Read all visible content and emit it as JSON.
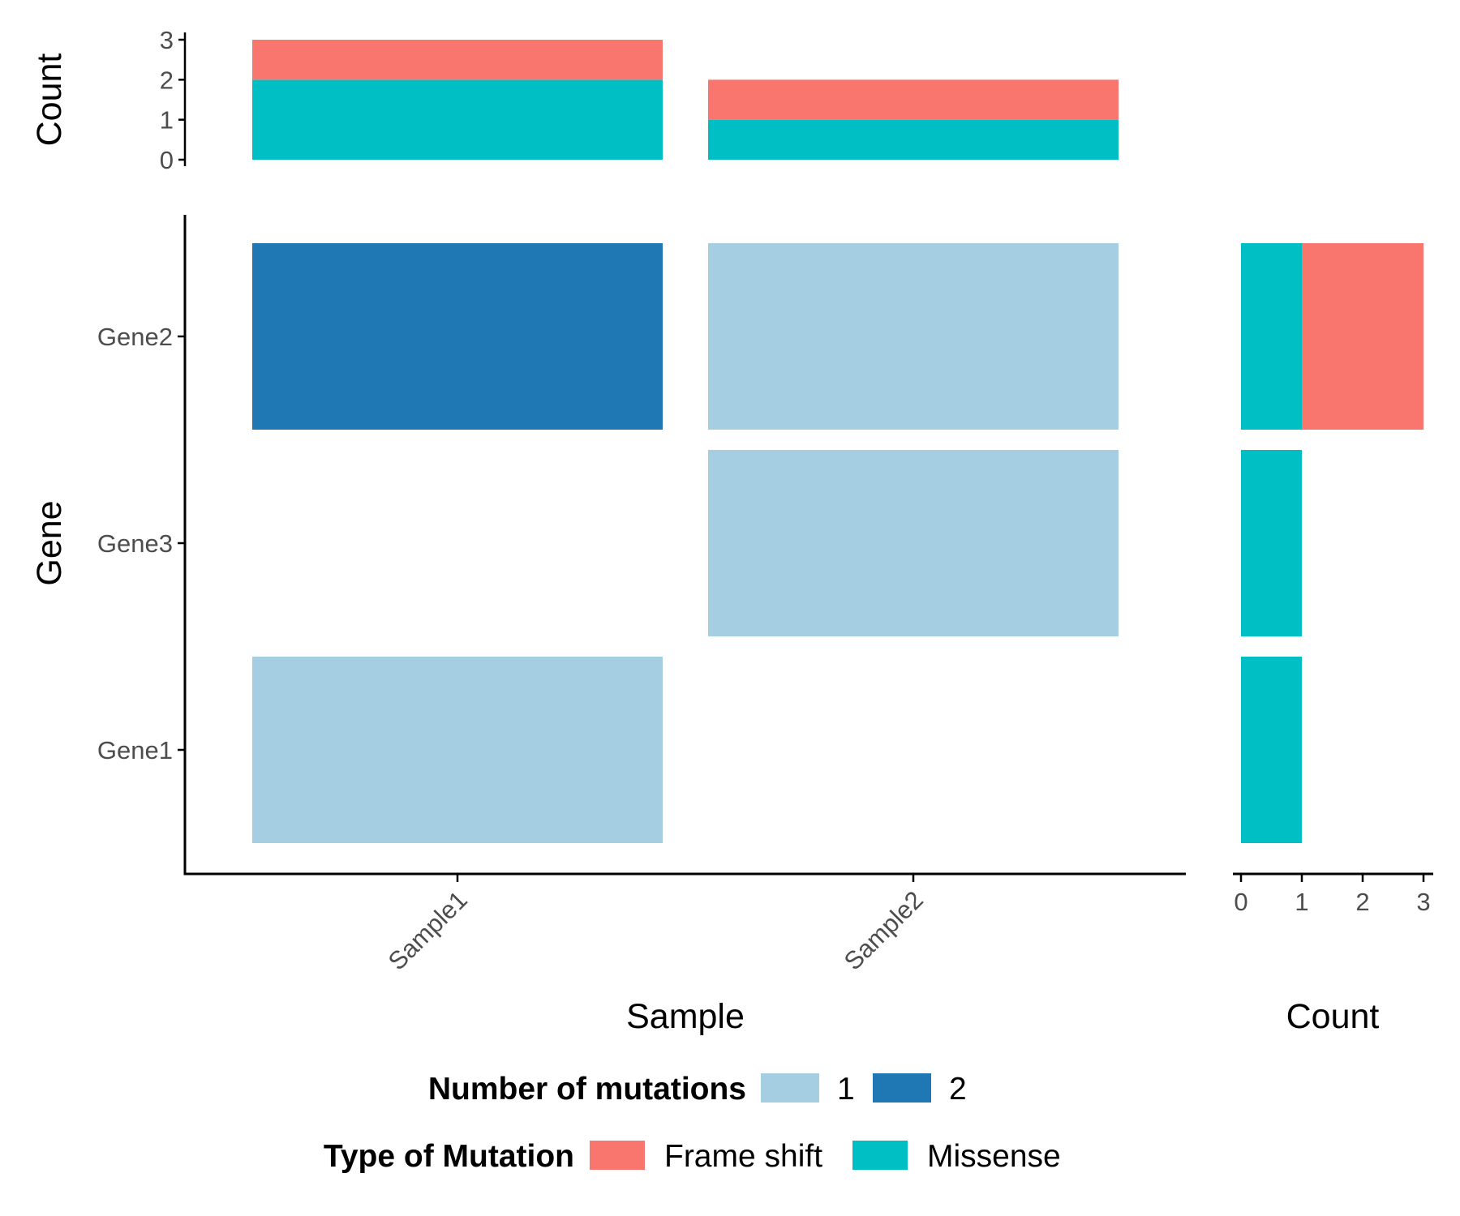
{
  "chart_data": [
    {
      "type": "bar",
      "panel": "top",
      "stacked": true,
      "orientation": "vertical",
      "categories": [
        "Sample1",
        "Sample2"
      ],
      "series": [
        {
          "name": "Missense",
          "values": [
            2,
            1
          ]
        },
        {
          "name": "Frame shift",
          "values": [
            1,
            1
          ]
        }
      ],
      "ylabel": "Count",
      "ylim": [
        0,
        3
      ],
      "yticks": [
        "0",
        "1",
        "2",
        "3"
      ]
    },
    {
      "type": "heatmap",
      "panel": "main",
      "x_categories": [
        "Sample1",
        "Sample2"
      ],
      "y_categories": [
        "Gene1",
        "Gene3",
        "Gene2"
      ],
      "cells": [
        {
          "x": "Sample1",
          "y": "Gene2",
          "value": 2
        },
        {
          "x": "Sample2",
          "y": "Gene2",
          "value": 1
        },
        {
          "x": "Sample2",
          "y": "Gene3",
          "value": 1
        },
        {
          "x": "Sample1",
          "y": "Gene1",
          "value": 1
        }
      ],
      "xlabel": "Sample",
      "ylabel": "Gene",
      "legend_title": "Number of mutations",
      "legend": [
        {
          "label": "1",
          "color": "#a6cee3"
        },
        {
          "label": "2",
          "color": "#1f78b4"
        }
      ]
    },
    {
      "type": "bar",
      "panel": "right",
      "stacked": true,
      "orientation": "horizontal",
      "categories": [
        "Gene1",
        "Gene3",
        "Gene2"
      ],
      "series": [
        {
          "name": "Missense",
          "values": [
            1,
            1,
            1
          ]
        },
        {
          "name": "Frame shift",
          "values": [
            0,
            0,
            2
          ]
        }
      ],
      "xlabel": "Count",
      "xlim": [
        0,
        3
      ],
      "xticks": [
        "0",
        "1",
        "2",
        "3"
      ],
      "legend_title": "Type of Mutation",
      "legend": [
        {
          "label": "Frame shift",
          "color": "#f8766d"
        },
        {
          "label": "Missense",
          "color": "#00bfc4"
        }
      ]
    }
  ]
}
